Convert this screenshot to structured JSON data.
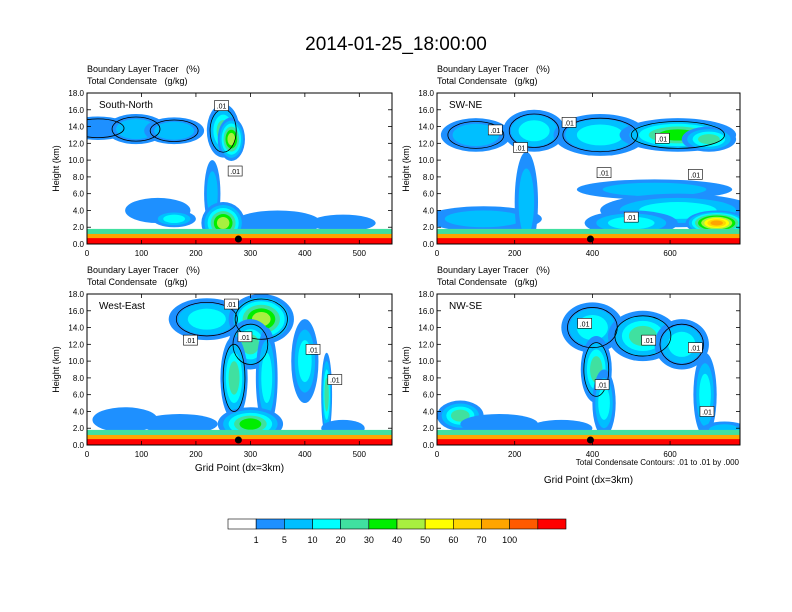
{
  "chart_data": {
    "type": "heatmap",
    "title": "2014-01-25_18:00:00",
    "colorbar": {
      "tick_labels": [
        "1",
        "5",
        "10",
        "20",
        "30",
        "40",
        "50",
        "60",
        "70",
        "100"
      ],
      "colors": [
        "#ffffff",
        "#1e90ff",
        "#00bfff",
        "#00ffff",
        "#40e0a0",
        "#00ee00",
        "#a8f040",
        "#ffff00",
        "#ffd700",
        "#ffa500",
        "#ff5a00",
        "#ff0000"
      ]
    },
    "contour_note": "Total Condensate Contours: .01 to .01 by .000",
    "panels": [
      {
        "label": "South-North",
        "subtitle_line1": "Boundary Layer Tracer   (%)",
        "subtitle_line2": "Total Condensate   (g/kg)",
        "ylabel": "Height (km)",
        "xlabel": "",
        "xlim": [
          0,
          560
        ],
        "ylim": [
          0,
          18
        ],
        "xticks": [
          0,
          100,
          200,
          300,
          400,
          500
        ],
        "yticks": [
          "0.0",
          "2.0",
          "4.0",
          "6.0",
          "8.0",
          "10.0",
          "12.0",
          "14.0",
          "16.0",
          "18.0"
        ],
        "marker_x": 278,
        "contour_labels": [
          {
            "text": ".01",
            "x": 247,
            "y": 16.5
          },
          {
            "text": ".01",
            "x": 272,
            "y": 8.7
          }
        ],
        "blobs": [
          [
            20,
            13.8,
            60,
            1.4,
            1
          ],
          [
            90,
            13.7,
            55,
            1.8,
            2
          ],
          [
            160,
            13.5,
            55,
            1.6,
            2
          ],
          [
            250,
            13.5,
            30,
            3.2,
            4
          ],
          [
            265,
            12.5,
            25,
            2.6,
            6
          ],
          [
            230,
            6,
            15,
            4,
            2
          ],
          [
            130,
            4,
            60,
            1.5,
            1
          ],
          [
            160,
            3,
            40,
            1,
            3
          ],
          [
            350,
            2.5,
            80,
            1.5,
            1
          ],
          [
            470,
            2.5,
            60,
            1,
            1
          ],
          [
            250,
            2.5,
            40,
            2.5,
            6
          ]
        ]
      },
      {
        "label": "SW-NE",
        "subtitle_line1": "Boundary Layer Tracer   (%)",
        "subtitle_line2": "Total Condensate   (g/kg)",
        "ylabel": "Height (km)",
        "xlabel": "",
        "xlim": [
          0,
          780
        ],
        "ylim": [
          0,
          18
        ],
        "xticks": [
          0,
          200,
          400,
          600
        ],
        "yticks": [
          "0.0",
          "2.0",
          "4.0",
          "6.0",
          "8.0",
          "10.0",
          "12.0",
          "14.0",
          "16.0",
          "18.0"
        ],
        "marker_x": 395,
        "contour_labels": [
          {
            "text": ".01",
            "x": 150,
            "y": 13.6
          },
          {
            "text": ".01",
            "x": 215,
            "y": 11.5
          },
          {
            "text": ".01",
            "x": 340,
            "y": 14.5
          },
          {
            "text": ".01",
            "x": 430,
            "y": 8.5
          },
          {
            "text": ".01",
            "x": 580,
            "y": 12.6
          },
          {
            "text": ".01",
            "x": 665,
            "y": 8.3
          },
          {
            "text": ".01",
            "x": 500,
            "y": 3.2
          }
        ],
        "blobs": [
          [
            100,
            13,
            90,
            2,
            2
          ],
          [
            250,
            13.5,
            80,
            2.5,
            3
          ],
          [
            420,
            13,
            120,
            2.5,
            3
          ],
          [
            620,
            13,
            150,
            2,
            5
          ],
          [
            700,
            12.5,
            70,
            1.5,
            4
          ],
          [
            560,
            6.5,
            200,
            1.2,
            2
          ],
          [
            620,
            4,
            200,
            2,
            3
          ],
          [
            720,
            2.5,
            80,
            1.5,
            9
          ],
          [
            120,
            3,
            150,
            1.5,
            2
          ],
          [
            230,
            5,
            30,
            6,
            2
          ],
          [
            500,
            2.5,
            120,
            1.5,
            3
          ]
        ]
      },
      {
        "label": "West-East",
        "subtitle_line1": "Boundary Layer Tracer   (%)",
        "subtitle_line2": "Total Condensate   (g/kg)",
        "ylabel": "Height (km)",
        "xlabel": "Grid Point (dx=3km)",
        "xlim": [
          0,
          560
        ],
        "ylim": [
          0,
          18
        ],
        "xticks": [
          0,
          100,
          200,
          300,
          400,
          500
        ],
        "yticks": [
          "0.0",
          "2.0",
          "4.0",
          "6.0",
          "8.0",
          "10.0",
          "12.0",
          "14.0",
          "16.0",
          "18.0"
        ],
        "marker_x": 278,
        "contour_labels": [
          {
            "text": ".01",
            "x": 265,
            "y": 16.8
          },
          {
            "text": ".01",
            "x": 190,
            "y": 12.5
          },
          {
            "text": ".01",
            "x": 290,
            "y": 12.9
          },
          {
            "text": ".01",
            "x": 415,
            "y": 11.4
          },
          {
            "text": ".01",
            "x": 455,
            "y": 7.8
          }
        ],
        "blobs": [
          [
            220,
            15,
            70,
            2.5,
            3
          ],
          [
            320,
            15,
            60,
            3,
            6
          ],
          [
            300,
            12,
            40,
            3,
            4
          ],
          [
            270,
            8,
            25,
            5,
            4
          ],
          [
            330,
            8,
            20,
            6,
            3
          ],
          [
            400,
            10,
            25,
            5,
            3
          ],
          [
            440,
            6,
            10,
            5,
            4
          ],
          [
            300,
            2.5,
            60,
            2,
            5
          ],
          [
            70,
            3,
            60,
            1.5,
            1
          ],
          [
            170,
            2.5,
            70,
            1.2,
            1
          ],
          [
            470,
            2,
            40,
            1,
            1
          ]
        ]
      },
      {
        "label": "NW-SE",
        "subtitle_line1": "Boundary Layer Tracer   (%)",
        "subtitle_line2": "Total Condensate   (g/kg)",
        "ylabel": "Height (km)",
        "xlabel": "Grid Point (dx=3km)",
        "xlim": [
          0,
          780
        ],
        "ylim": [
          0,
          18
        ],
        "xticks": [
          0,
          200,
          400,
          600
        ],
        "yticks": [
          "0.0",
          "2.0",
          "4.0",
          "6.0",
          "8.0",
          "10.0",
          "12.0",
          "14.0",
          "16.0",
          "18.0"
        ],
        "marker_x": 395,
        "contour_labels": [
          {
            "text": ".01",
            "x": 380,
            "y": 14.5
          },
          {
            "text": ".01",
            "x": 545,
            "y": 12.5
          },
          {
            "text": ".01",
            "x": 665,
            "y": 11.6
          },
          {
            "text": ".01",
            "x": 425,
            "y": 7.2
          },
          {
            "text": ".01",
            "x": 695,
            "y": 4.0
          }
        ],
        "blobs": [
          [
            400,
            14,
            80,
            3,
            3
          ],
          [
            530,
            13,
            90,
            3,
            4
          ],
          [
            630,
            12,
            70,
            3,
            3
          ],
          [
            410,
            9,
            40,
            4,
            4
          ],
          [
            430,
            5,
            30,
            4,
            3
          ],
          [
            690,
            6,
            30,
            5,
            3
          ],
          [
            60,
            3.5,
            60,
            1.8,
            4
          ],
          [
            160,
            2.5,
            100,
            1.2,
            1
          ],
          [
            740,
            1.8,
            60,
            1,
            2
          ],
          [
            320,
            2,
            80,
            1,
            1
          ]
        ]
      }
    ]
  }
}
